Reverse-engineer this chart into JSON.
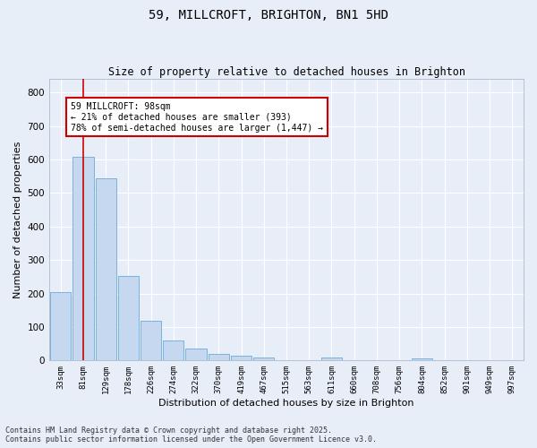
{
  "title": "59, MILLCROFT, BRIGHTON, BN1 5HD",
  "subtitle": "Size of property relative to detached houses in Brighton",
  "xlabel": "Distribution of detached houses by size in Brighton",
  "ylabel": "Number of detached properties",
  "categories": [
    "33sqm",
    "81sqm",
    "129sqm",
    "178sqm",
    "226sqm",
    "274sqm",
    "322sqm",
    "370sqm",
    "419sqm",
    "467sqm",
    "515sqm",
    "563sqm",
    "611sqm",
    "660sqm",
    "708sqm",
    "756sqm",
    "804sqm",
    "852sqm",
    "901sqm",
    "949sqm",
    "997sqm"
  ],
  "values": [
    205,
    608,
    543,
    251,
    118,
    60,
    36,
    19,
    15,
    10,
    0,
    0,
    8,
    0,
    0,
    0,
    5,
    0,
    0,
    0,
    0
  ],
  "bar_color": "#c5d8f0",
  "bar_edge_color": "#6baad8",
  "background_color": "#e8eef8",
  "grid_color": "#ffffff",
  "vline_color": "#cc0000",
  "annotation_text": "59 MILLCROFT: 98sqm\n← 21% of detached houses are smaller (393)\n78% of semi-detached houses are larger (1,447) →",
  "annotation_box_color": "#ffffff",
  "annotation_box_edge_color": "#cc0000",
  "ylim": [
    0,
    840
  ],
  "yticks": [
    0,
    100,
    200,
    300,
    400,
    500,
    600,
    700,
    800
  ],
  "footnote1": "Contains HM Land Registry data © Crown copyright and database right 2025.",
  "footnote2": "Contains public sector information licensed under the Open Government Licence v3.0."
}
